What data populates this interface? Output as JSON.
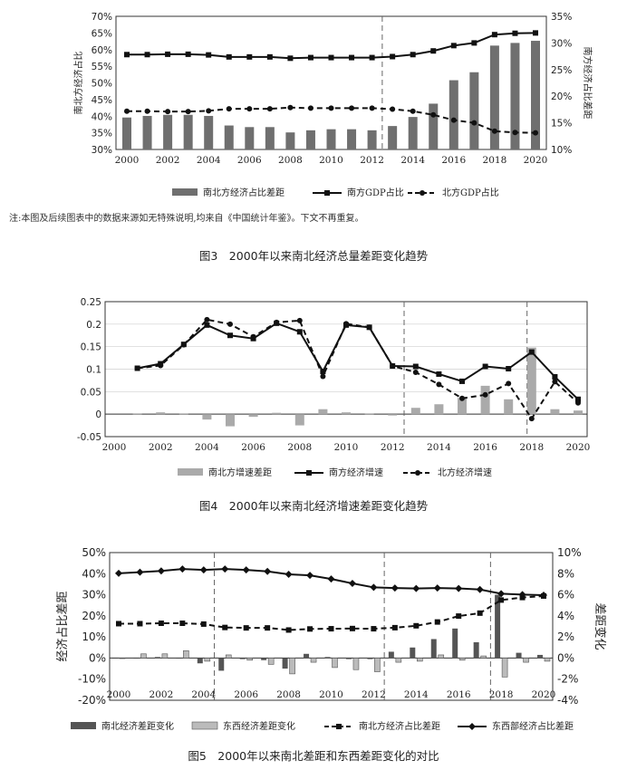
{
  "note": "注:本图及后续图表中的数据来源如无特殊说明,均来自《中国统计年鉴》。下文不再重复。",
  "figures": [
    {
      "caption": "图3　2000年以来南北经济总量差距变化趋势"
    },
    {
      "caption": "图4　2000年以来南北经济增速差距变化趋势"
    },
    {
      "caption": "图5　2000年以来南北差距和东西差距变化的对比"
    }
  ],
  "chart_data": [
    {
      "type": "bar",
      "x": [
        2000,
        2001,
        2002,
        2003,
        2004,
        2005,
        2006,
        2007,
        2008,
        2009,
        2010,
        2011,
        2012,
        2013,
        2014,
        2015,
        2016,
        2017,
        2018,
        2019,
        2020
      ],
      "x_ticks": [
        2000,
        2002,
        2004,
        2006,
        2008,
        2010,
        2012,
        2014,
        2016,
        2018,
        2020
      ],
      "ylabel": "南北方经济占比",
      "y2label": "南方经济占比差距",
      "ylim": [
        30,
        70
      ],
      "yticks": [
        "30%",
        "35%",
        "40%",
        "45%",
        "50%",
        "55%",
        "60%",
        "65%",
        "70%"
      ],
      "y2lim": [
        10,
        35
      ],
      "y2ticks": [
        "10%",
        "15%",
        "20%",
        "25%",
        "30%",
        "35%"
      ],
      "vlines": [
        2012.5
      ],
      "bars": {
        "name": "南北方经济占比差距",
        "axis": "y2",
        "values": [
          16.0,
          16.3,
          16.5,
          16.5,
          16.3,
          14.5,
          14.2,
          14.2,
          13.2,
          13.6,
          13.8,
          13.8,
          13.6,
          14.4,
          16.1,
          18.6,
          23.0,
          24.5,
          29.5,
          30.0,
          30.4
        ]
      },
      "series": [
        {
          "name": "南方GDP占比",
          "axis": "y",
          "marker": "square",
          "values": [
            58.5,
            58.5,
            58.6,
            58.6,
            58.4,
            57.8,
            57.8,
            57.8,
            57.4,
            57.6,
            57.6,
            57.6,
            57.6,
            57.9,
            58.5,
            59.6,
            61.2,
            62.0,
            64.5,
            64.9,
            65.0
          ]
        },
        {
          "name": "北方GDP占比",
          "axis": "y",
          "marker": "circle",
          "dashed": true,
          "values": [
            41.5,
            41.5,
            41.4,
            41.4,
            41.6,
            42.2,
            42.2,
            42.2,
            42.6,
            42.4,
            42.4,
            42.4,
            42.4,
            42.1,
            41.5,
            40.4,
            38.8,
            38.0,
            35.5,
            35.1,
            35.0
          ]
        }
      ]
    },
    {
      "type": "bar",
      "x": [
        2001,
        2002,
        2003,
        2004,
        2005,
        2006,
        2007,
        2008,
        2009,
        2010,
        2011,
        2012,
        2013,
        2014,
        2015,
        2016,
        2017,
        2018,
        2019,
        2020
      ],
      "x_ticks": [
        2000,
        2002,
        2004,
        2006,
        2008,
        2010,
        2012,
        2014,
        2016,
        2018,
        2020
      ],
      "ylim": [
        -0.05,
        0.25
      ],
      "yticks": [
        "-0.05",
        "0",
        "0.05",
        "0.1",
        "0.15",
        "0.2",
        "0.25"
      ],
      "vlines": [
        2012.5,
        2017.8
      ],
      "bars": {
        "name": "南北方增速差距",
        "values": [
          0.001,
          0.004,
          0.001,
          -0.012,
          -0.027,
          -0.006,
          0.003,
          -0.025,
          0.011,
          0.004,
          0.001,
          -0.003,
          0.014,
          0.022,
          0.036,
          0.063,
          0.033,
          0.148,
          0.011,
          0.008
        ]
      },
      "series": [
        {
          "name": "南方经济增速",
          "marker": "square",
          "values": [
            0.102,
            0.112,
            0.155,
            0.198,
            0.175,
            0.168,
            0.202,
            0.183,
            0.095,
            0.198,
            0.193,
            0.107,
            0.106,
            0.089,
            0.073,
            0.106,
            0.101,
            0.138,
            0.083,
            0.033
          ]
        },
        {
          "name": "北方经济增速",
          "marker": "circle",
          "dashed": true,
          "values": [
            0.102,
            0.108,
            0.154,
            0.21,
            0.2,
            0.172,
            0.204,
            0.208,
            0.084,
            0.201,
            0.193,
            0.107,
            0.093,
            0.066,
            0.035,
            0.043,
            0.068,
            -0.01,
            0.072,
            0.025
          ]
        }
      ]
    },
    {
      "type": "bar",
      "x": [
        2000,
        2001,
        2002,
        2003,
        2004,
        2005,
        2006,
        2007,
        2008,
        2009,
        2010,
        2011,
        2012,
        2013,
        2014,
        2015,
        2016,
        2017,
        2018,
        2019,
        2020
      ],
      "x_ticks": [
        2000,
        2002,
        2004,
        2006,
        2008,
        2010,
        2012,
        2014,
        2016,
        2018,
        2020
      ],
      "ylabel": "经济占比差距",
      "y2label": "差距变化",
      "ylim": [
        -20,
        50
      ],
      "yticks": [
        "-20%",
        "-10%",
        "0%",
        "10%",
        "20%",
        "30%",
        "40%",
        "50%"
      ],
      "y2lim": [
        -4,
        10
      ],
      "y2ticks": [
        "-4%",
        "-2%",
        "0%",
        "2%",
        "4%",
        "6%",
        "8%",
        "10%"
      ],
      "vlines": [
        2004.5,
        2012.5,
        2017.5
      ],
      "bars": [
        {
          "name": "南北经济差距变化",
          "axis": "y2",
          "color": "#555555",
          "values": [
            0.0,
            0.0,
            0.1,
            0.0,
            -0.5,
            -1.2,
            -0.1,
            -0.2,
            -1.0,
            0.4,
            0.1,
            -0.1,
            -0.1,
            0.6,
            1.0,
            1.8,
            2.8,
            1.5,
            6.0,
            0.5,
            0.3
          ]
        },
        {
          "name": "东西经济差距变化",
          "axis": "y2",
          "color": "#bbbbbb",
          "values": [
            0.0,
            0.4,
            0.4,
            0.7,
            -0.3,
            0.3,
            -0.2,
            -0.6,
            -1.5,
            -0.4,
            -0.9,
            -1.1,
            -1.3,
            -0.4,
            -0.3,
            0.3,
            -0.2,
            0.2,
            -1.8,
            -0.4,
            -0.3
          ]
        }
      ],
      "series": [
        {
          "name": "南北方经济占比差距",
          "axis": "y",
          "marker": "square",
          "dashed": true,
          "values": [
            16.3,
            16.3,
            16.5,
            16.5,
            16.1,
            14.5,
            14.3,
            14.3,
            13.3,
            13.8,
            13.9,
            14.0,
            13.9,
            14.4,
            15.3,
            17.1,
            19.9,
            21.3,
            27.5,
            28.7,
            29.4
          ]
        },
        {
          "name": "东西部经济占比差距",
          "axis": "y",
          "marker": "diamond",
          "values": [
            40.2,
            40.7,
            41.3,
            42.2,
            41.8,
            42.2,
            41.8,
            41.1,
            39.7,
            39.2,
            37.5,
            35.4,
            33.5,
            33.2,
            33.0,
            33.2,
            33.0,
            32.5,
            30.5,
            30.1,
            29.8
          ]
        }
      ]
    }
  ]
}
